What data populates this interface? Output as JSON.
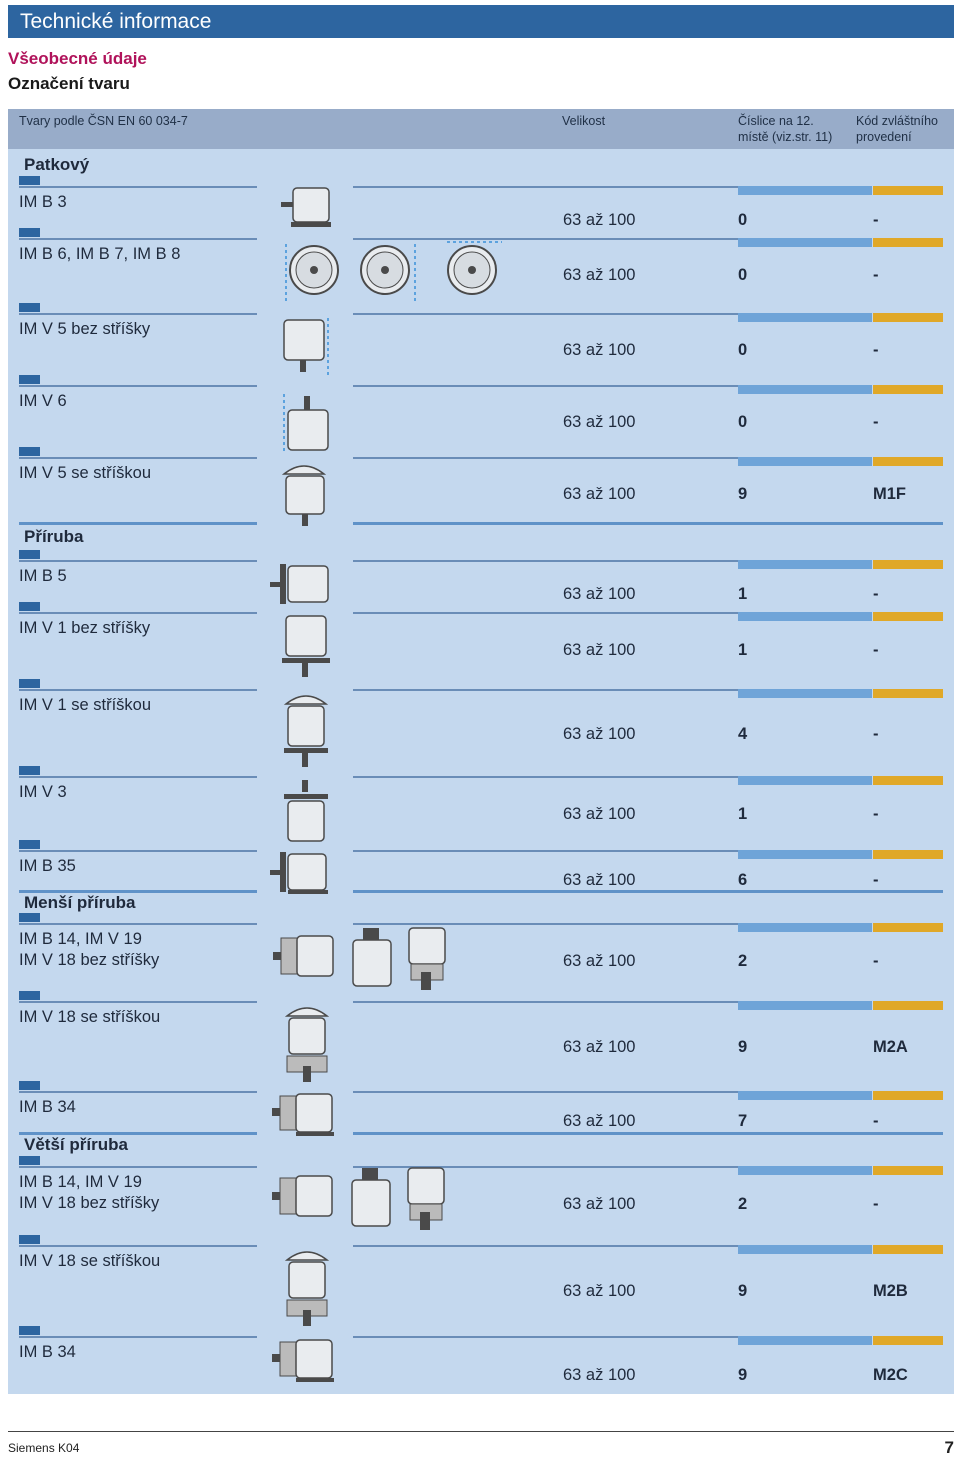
{
  "header": {
    "title": "Technické informace"
  },
  "subtitle1": "Všeobecné údaje",
  "subtitle2": "Označení tvaru",
  "table": {
    "col_form": "Tvary podle ČSN EN 60 034-7",
    "col_size": "Velikost",
    "col_digit_l1": "Číslice na 12.",
    "col_digit_l2": "místě  (viz.str. 11)",
    "col_code_l1": "Kód zvláštního",
    "col_code_l2": "provedení",
    "sections": [
      "Patkový",
      "Příruba",
      "Menší příruba",
      "Větší příruba"
    ],
    "rows": [
      {
        "l1": "IM B 3",
        "l2": "",
        "size": "63 až 100",
        "digit": "0",
        "code": "-",
        "icon": "foot-motor-icon"
      },
      {
        "l1": "IM B 6, IM B 7, IM B 8",
        "l2": "",
        "size": "63 až 100",
        "digit": "0",
        "code": "-",
        "icon": "wall-mount-motors-icon"
      },
      {
        "l1": "IM V 5 bez stříšky",
        "l2": "",
        "size": "63 až 100",
        "digit": "0",
        "code": "-",
        "icon": "vertical-foot-motor-icon"
      },
      {
        "l1": "IM V 6",
        "l2": "",
        "size": "63 až 100",
        "digit": "0",
        "code": "-",
        "icon": "vertical-foot-motor-up-icon"
      },
      {
        "l1": "IM V 5 se stříškou",
        "l2": "",
        "size": "63 až 100",
        "digit": "9",
        "code": "M1F",
        "icon": "vertical-motor-canopy-icon"
      },
      {
        "l1": "IM B 5",
        "l2": "",
        "size": "63 až 100",
        "digit": "1",
        "code": "-",
        "icon": "flange-motor-icon"
      },
      {
        "l1": "IM V 1 bez stříšky",
        "l2": "",
        "size": "63 až 100",
        "digit": "1",
        "code": "-",
        "icon": "vertical-flange-motor-icon"
      },
      {
        "l1": "IM V 1 se stříškou",
        "l2": "",
        "size": "63 až 100",
        "digit": "4",
        "code": "-",
        "icon": "vertical-flange-canopy-icon"
      },
      {
        "l1": "IM V 3",
        "l2": "",
        "size": "63 až 100",
        "digit": "1",
        "code": "-",
        "icon": "vertical-flange-up-icon"
      },
      {
        "l1": "IM B 35",
        "l2": "",
        "size": "63 až 100",
        "digit": "6",
        "code": "-",
        "icon": "foot-flange-motor-icon"
      },
      {
        "l1": "IM B 14, IM V 19",
        "l2": "IM V 18 bez stříšky",
        "size": "63 až 100",
        "digit": "2",
        "code": "-",
        "icon": "small-flange-motors-icon"
      },
      {
        "l1": "IM V 18 se stříškou",
        "l2": "",
        "size": "63 až 100",
        "digit": "9",
        "code": "M2A",
        "icon": "small-flange-canopy-icon"
      },
      {
        "l1": "IM B 34",
        "l2": "",
        "size": "63 až 100",
        "digit": "7",
        "code": "-",
        "icon": "foot-small-flange-icon"
      },
      {
        "l1": "IM B 14, IM V 19",
        "l2": "IM V 18 bez stříšky",
        "size": "63 až 100",
        "digit": "2",
        "code": "-",
        "icon": "large-flange-motors-icon"
      },
      {
        "l1": "IM V 18 se stříškou",
        "l2": "",
        "size": "63 až 100",
        "digit": "9",
        "code": "M2B",
        "icon": "large-flange-canopy-icon"
      },
      {
        "l1": "IM B 34",
        "l2": "",
        "size": "63 až 100",
        "digit": "9",
        "code": "M2C",
        "icon": "foot-large-flange-icon"
      }
    ]
  },
  "footer": {
    "left": "Siemens K04",
    "page": "7"
  },
  "colors": {
    "title_bar": "#2d65a0",
    "subtitle": "#b0125a",
    "table_bg": "#c4d8ee",
    "header_bg": "#98acc9",
    "band_blue": "#6fa4d8",
    "band_gold": "#e0a828"
  }
}
